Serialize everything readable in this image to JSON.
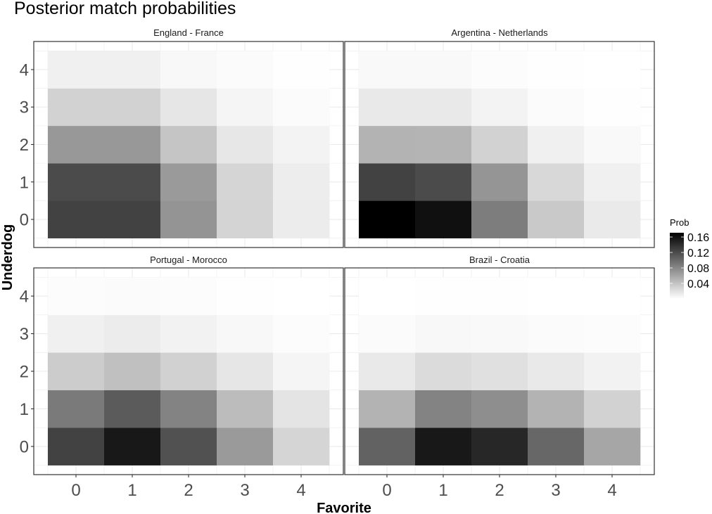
{
  "chart_data": {
    "type": "heatmap",
    "title": "Posterior match probabilities",
    "xlabel": "Favorite",
    "ylabel": "Underdog",
    "x_categories": [
      "0",
      "1",
      "2",
      "3",
      "4"
    ],
    "y_categories": [
      "0",
      "1",
      "2",
      "3",
      "4"
    ],
    "grid": true,
    "legend": {
      "title": "Prob",
      "position": "right",
      "ticks": [
        "0.04",
        "0.08",
        "0.12",
        "0.16"
      ],
      "tick_values": [
        0.04,
        0.08,
        0.12,
        0.16
      ],
      "range": [
        0.0,
        0.171
      ],
      "low_color": "#ffffff",
      "high_color": "#000000"
    },
    "panels": [
      {
        "label": "England - France",
        "values_by_underdog": [
          [
            0.127,
            0.127,
            0.072,
            0.029,
            0.013
          ],
          [
            0.121,
            0.121,
            0.068,
            0.028,
            0.012
          ],
          [
            0.069,
            0.069,
            0.039,
            0.016,
            0.008
          ],
          [
            0.03,
            0.03,
            0.017,
            0.007,
            0.003
          ],
          [
            0.01,
            0.01,
            0.005,
            0.003,
            0.001
          ]
        ]
      },
      {
        "label": "Argentina - Netherlands",
        "values_by_underdog": [
          [
            0.171,
            0.16,
            0.087,
            0.036,
            0.014
          ],
          [
            0.127,
            0.121,
            0.071,
            0.026,
            0.01
          ],
          [
            0.051,
            0.05,
            0.03,
            0.01,
            0.004
          ],
          [
            0.015,
            0.015,
            0.008,
            0.003,
            0.001
          ],
          [
            0.004,
            0.004,
            0.002,
            0.001,
            0.0
          ]
        ]
      },
      {
        "label": "Portugal - Morocco",
        "values_by_underdog": [
          [
            0.127,
            0.155,
            0.117,
            0.068,
            0.028
          ],
          [
            0.089,
            0.11,
            0.083,
            0.045,
            0.018
          ],
          [
            0.034,
            0.042,
            0.031,
            0.017,
            0.007
          ],
          [
            0.01,
            0.013,
            0.009,
            0.005,
            0.002
          ],
          [
            0.002,
            0.003,
            0.002,
            0.001,
            0.0
          ]
        ]
      },
      {
        "label": "Brazil - Croatia",
        "values_by_underdog": [
          [
            0.105,
            0.155,
            0.145,
            0.102,
            0.06
          ],
          [
            0.051,
            0.083,
            0.076,
            0.051,
            0.03
          ],
          [
            0.015,
            0.024,
            0.021,
            0.015,
            0.009
          ],
          [
            0.003,
            0.005,
            0.004,
            0.003,
            0.002
          ],
          [
            0.0,
            0.001,
            0.001,
            0.0,
            0.0
          ]
        ]
      }
    ]
  }
}
